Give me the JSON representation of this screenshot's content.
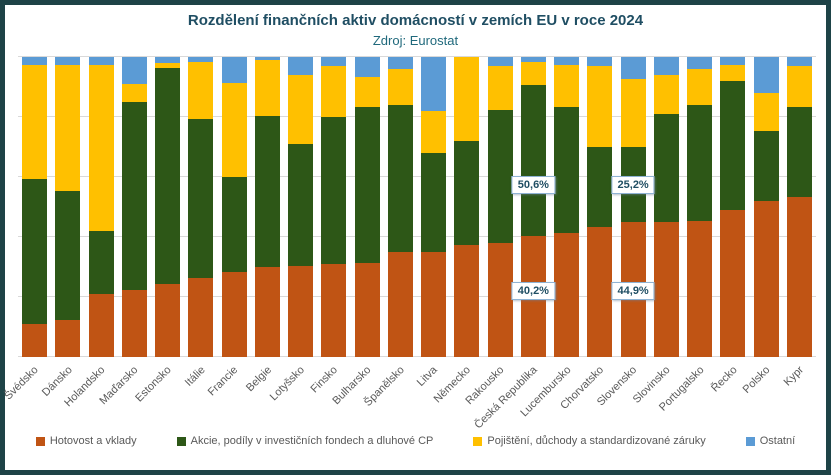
{
  "title": "Rozdělení finančních aktiv domácností v zemích EU v roce 2024",
  "subtitle": "Zdroj: Eurostat",
  "frame_color": "#1e4347",
  "title_color": "#1f4e63",
  "gridline_color": "#d9d9d9",
  "axis_label_color": "#595959",
  "chart_data": {
    "type": "bar",
    "stacked": true,
    "unit": "%",
    "ylim": [
      0,
      100
    ],
    "grid": true,
    "gridlines_pct": [
      0,
      20,
      40,
      60,
      80,
      100
    ],
    "legend_position": "bottom",
    "categories": [
      "Švédsko",
      "Dánsko",
      "Holandsko",
      "Maďarsko",
      "Estonsko",
      "Itálie",
      "Francie",
      "Belgie",
      "Lotyšsko",
      "Finsko",
      "Bulharsko",
      "Španělsko",
      "Litva",
      "Německo",
      "Rakousko",
      "Česká Republika",
      "Lucembursko",
      "Chorvatsko",
      "Slovensko",
      "Slovinsko",
      "Portugalsko",
      "Řecko",
      "Polsko",
      "Kypr"
    ],
    "series": [
      {
        "name": "Hotovost a vklady",
        "color": "#c05414",
        "values": [
          11,
          12.5,
          21,
          22.5,
          24.5,
          26.5,
          28.5,
          30,
          30.5,
          31,
          31.5,
          35,
          35,
          37.5,
          38,
          40.2,
          41.5,
          43.5,
          44.9,
          45,
          45.5,
          49,
          52,
          53.5
        ]
      },
      {
        "name": "Akcie, podíly v investičních fondech a dluhové CP",
        "color": "#2d5717",
        "values": [
          48.5,
          43,
          21,
          62.5,
          72,
          53,
          31.5,
          50.5,
          40.5,
          49,
          52,
          49,
          33,
          34.5,
          44.5,
          50.6,
          42,
          26.5,
          25.2,
          36,
          38.5,
          43,
          23.5,
          30
        ]
      },
      {
        "name": "Pojištění, důchody a standardizované záruky",
        "color": "#ffc000",
        "values": [
          38,
          42,
          55.5,
          6,
          1.5,
          19,
          31.5,
          18.5,
          23,
          17,
          10,
          12,
          14,
          28,
          14.5,
          7.4,
          14,
          27,
          22.5,
          13,
          12,
          5.5,
          12.5,
          13.5
        ]
      },
      {
        "name": "Ostatní",
        "color": "#5b9bd5",
        "values": [
          2.5,
          2.5,
          2.5,
          9,
          2,
          1.5,
          8.5,
          1,
          6,
          3,
          6.5,
          4,
          18,
          0,
          3,
          1.8,
          2.5,
          3,
          7.4,
          6,
          4,
          2.5,
          12,
          3
        ]
      }
    ],
    "annotations": [
      {
        "category_index": 15,
        "category": "Česká Republika",
        "series": "Akcie, podíly v investičních fondech a dluhové CP",
        "label": "50,6%",
        "center_pct": 57.5
      },
      {
        "category_index": 15,
        "category": "Česká Republika",
        "series": "Hotovost a vklady",
        "label": "40,2%",
        "center_pct": 22
      },
      {
        "category_index": 18,
        "category": "Slovensko",
        "series": "Akcie, podíly v investičních fondech a dluhové CP",
        "label": "25,2%",
        "center_pct": 57.5
      },
      {
        "category_index": 18,
        "category": "Slovensko",
        "series": "Hotovost a vklady",
        "label": "44,9%",
        "center_pct": 22
      }
    ]
  }
}
